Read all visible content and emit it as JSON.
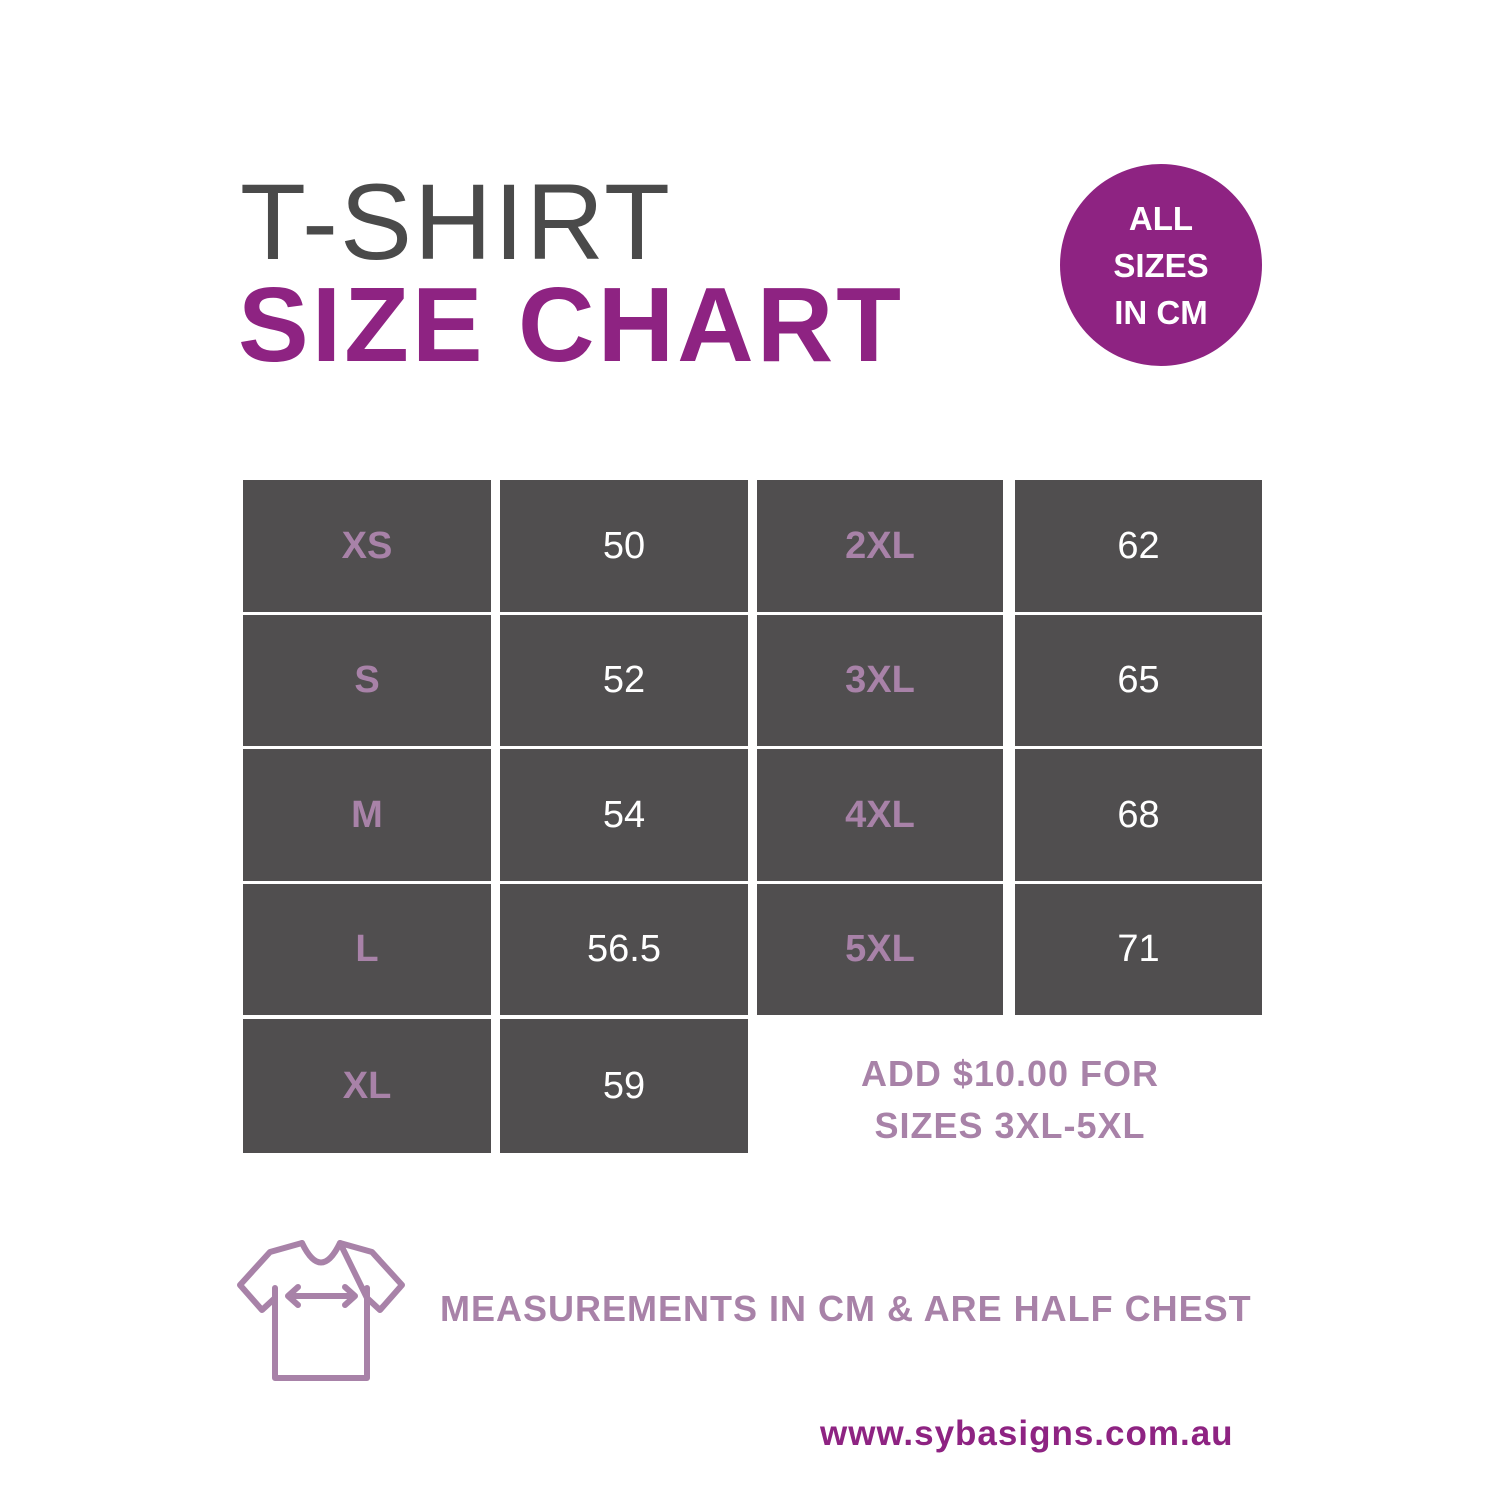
{
  "title": {
    "line1": "T-SHIRT",
    "line2": "SIZE CHART"
  },
  "badge": {
    "lines": [
      "ALL",
      "SIZES",
      "IN CM"
    ]
  },
  "table": {
    "left": [
      {
        "size": "XS",
        "value": "50"
      },
      {
        "size": "S",
        "value": "52"
      },
      {
        "size": "M",
        "value": "54"
      },
      {
        "size": "L",
        "value": "56.5"
      },
      {
        "size": "XL",
        "value": "59"
      }
    ],
    "right": [
      {
        "size": "2XL",
        "value": "62"
      },
      {
        "size": "3XL",
        "value": "65"
      },
      {
        "size": "4XL",
        "value": "68"
      },
      {
        "size": "5XL",
        "value": "71"
      }
    ]
  },
  "note": {
    "line1": "ADD $10.00 FOR",
    "line2": "SIZES 3XL-5XL"
  },
  "measurement_note": "MEASUREMENTS IN CM & ARE HALF CHEST",
  "icons": {
    "shirt": "tshirt-chest-width-icon"
  },
  "website": "www.sybasigns.com.au",
  "colors": {
    "brand_purple": "#8e2382",
    "light_purple": "#a882a8",
    "cell_gray": "#504e4f",
    "title_gray": "#4a4a4a"
  }
}
